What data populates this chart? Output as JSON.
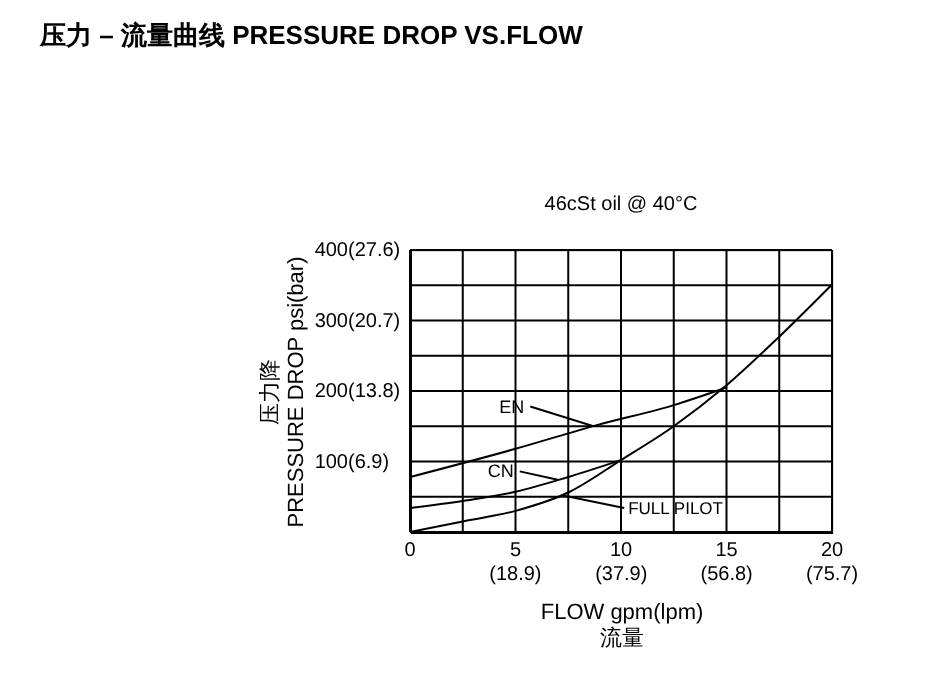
{
  "chart_data": {
    "type": "line",
    "title": "压力 – 流量曲线 PRESSURE DROP VS.FLOW",
    "subtitle": "46cSt oil @ 40°C",
    "xlabel": "FLOW gpm(lpm)\n流量",
    "ylabel": "压力降\nPRESSURE DROP psi(bar)",
    "xlim": [
      0,
      20
    ],
    "ylim": [
      0,
      400
    ],
    "xticks": [
      0,
      {
        "value": 2.5,
        "label": null
      },
      5,
      {
        "value": 7.5,
        "label": null
      },
      10,
      {
        "value": 12.5,
        "label": null
      },
      15,
      {
        "value": 17.5,
        "label": null
      },
      20
    ],
    "yticks": [
      {
        "value": 0,
        "label": null
      },
      {
        "value": 50,
        "label": null
      },
      100,
      {
        "value": 150,
        "label": null
      },
      200,
      {
        "value": 250,
        "label": null
      },
      300,
      {
        "value": 350,
        "label": null
      },
      400
    ],
    "x2lim": [
      0,
      75.7
    ],
    "x2ticks": [
      {
        "value": 18.9,
        "label": "(18.9)"
      },
      {
        "value": 37.9,
        "label": "(37.9)"
      },
      {
        "value": 56.8,
        "label": "(56.8)"
      },
      {
        "value": 75.7,
        "label": "(75.7)"
      }
    ],
    "y2lim": [
      0,
      27.6
    ],
    "y2ticks": [
      {
        "value": 6.9,
        "label": "(6.9)"
      },
      {
        "value": 13.8,
        "label": "(13.8)"
      },
      {
        "value": 20.7,
        "label": "(20.7)"
      },
      {
        "value": 27.6,
        "label": "(27.6)"
      }
    ],
    "grid": true,
    "marker": "none",
    "line_style": "solid",
    "series": [
      {
        "color": "#000000",
        "x": [
          0,
          5,
          8.9,
          12.5,
          15
        ],
        "values": [
          78,
          118,
          152,
          180,
          205
        ]
      },
      {
        "color": "#000000",
        "x": [
          0,
          2.5,
          5,
          7.5,
          10
        ],
        "values": [
          34,
          44,
          57,
          78,
          102
        ]
      },
      {
        "color": "#000000",
        "x": [
          0,
          2.5,
          5,
          7.5,
          10,
          12.5,
          15,
          17.5,
          20
        ],
        "values": [
          0,
          15,
          30,
          56,
          102,
          150,
          208,
          277,
          351
        ]
      }
    ],
    "annotations": [
      {
        "text": "EN",
        "x": 8.7,
        "y": 150
      },
      {
        "text": "CN",
        "x": 7.0,
        "y": 74
      },
      {
        "text": "FULL PILOT",
        "x": 7.2,
        "y": 52
      }
    ]
  }
}
